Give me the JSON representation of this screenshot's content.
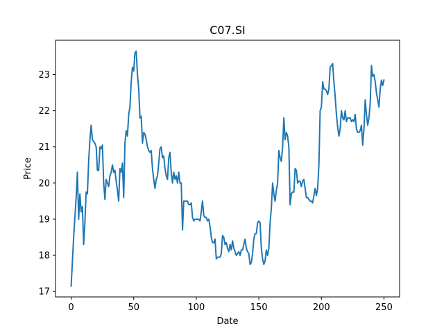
{
  "chart_data": {
    "type": "line",
    "title": "C07.SI",
    "xlabel": "Date",
    "ylabel": "Price",
    "xlim": [
      -12.5,
      262.5
    ],
    "ylim": [
      16.85,
      23.95
    ],
    "xticks": [
      0,
      50,
      100,
      150,
      200,
      250
    ],
    "yticks": [
      17,
      18,
      19,
      20,
      21,
      22,
      23
    ],
    "grid": false,
    "legend": "none",
    "series": [
      {
        "color": "#1f77b4",
        "keypoints": [
          [
            0,
            17.15
          ],
          [
            2,
            18.5
          ],
          [
            4,
            19.6
          ],
          [
            5,
            20.3
          ],
          [
            6,
            19.0
          ],
          [
            7,
            19.7
          ],
          [
            8,
            19.2
          ],
          [
            9,
            19.35
          ],
          [
            10,
            18.3
          ],
          [
            11,
            18.9
          ],
          [
            12,
            19.75
          ],
          [
            13,
            19.7
          ],
          [
            14,
            20.6
          ],
          [
            15,
            21.2
          ],
          [
            16,
            21.6
          ],
          [
            17,
            21.2
          ],
          [
            18,
            21.15
          ],
          [
            19,
            21.1
          ],
          [
            20,
            21.0
          ],
          [
            21,
            20.35
          ],
          [
            22,
            20.35
          ],
          [
            23,
            21.0
          ],
          [
            24,
            20.95
          ],
          [
            25,
            21.05
          ],
          [
            26,
            20.0
          ],
          [
            27,
            19.55
          ],
          [
            28,
            20.1
          ],
          [
            29,
            20.0
          ],
          [
            30,
            19.9
          ],
          [
            31,
            20.2
          ],
          [
            32,
            20.3
          ],
          [
            33,
            20.5
          ],
          [
            34,
            20.3
          ],
          [
            35,
            20.35
          ],
          [
            36,
            20.05
          ],
          [
            37,
            19.8
          ],
          [
            38,
            19.5
          ],
          [
            39,
            20.4
          ],
          [
            40,
            20.3
          ],
          [
            41,
            20.55
          ],
          [
            42,
            19.6
          ],
          [
            43,
            21.1
          ],
          [
            44,
            21.45
          ],
          [
            45,
            21.3
          ],
          [
            46,
            21.9
          ],
          [
            47,
            22.1
          ],
          [
            48,
            22.8
          ],
          [
            49,
            23.2
          ],
          [
            50,
            23.1
          ],
          [
            51,
            23.6
          ],
          [
            52,
            23.65
          ],
          [
            53,
            23.0
          ],
          [
            54,
            22.6
          ],
          [
            55,
            21.8
          ],
          [
            56,
            21.85
          ],
          [
            57,
            21.1
          ],
          [
            58,
            21.4
          ],
          [
            59,
            21.35
          ],
          [
            60,
            21.2
          ],
          [
            61,
            21.0
          ],
          [
            62,
            20.9
          ],
          [
            63,
            20.85
          ],
          [
            64,
            20.9
          ],
          [
            65,
            20.4
          ],
          [
            66,
            20.1
          ],
          [
            67,
            19.85
          ],
          [
            68,
            20.1
          ],
          [
            69,
            20.2
          ],
          [
            70,
            20.55
          ],
          [
            71,
            20.95
          ],
          [
            72,
            21.0
          ],
          [
            73,
            20.7
          ],
          [
            74,
            20.75
          ],
          [
            75,
            20.4
          ],
          [
            76,
            20.2
          ],
          [
            77,
            20.1
          ],
          [
            78,
            20.7
          ],
          [
            79,
            20.85
          ],
          [
            80,
            20.3
          ],
          [
            81,
            20.0
          ],
          [
            82,
            20.3
          ],
          [
            83,
            20.1
          ],
          [
            84,
            20.2
          ],
          [
            85,
            20.0
          ],
          [
            86,
            20.3
          ],
          [
            87,
            20.0
          ],
          [
            88,
            20.0
          ],
          [
            89,
            18.7
          ],
          [
            90,
            19.5
          ],
          [
            91,
            19.5
          ],
          [
            92,
            19.5
          ],
          [
            93,
            19.5
          ],
          [
            94,
            19.4
          ],
          [
            95,
            19.4
          ],
          [
            96,
            19.45
          ],
          [
            97,
            19.05
          ],
          [
            98,
            18.95
          ],
          [
            99,
            19.0
          ],
          [
            100,
            19.0
          ],
          [
            101,
            19.0
          ],
          [
            102,
            19.0
          ],
          [
            103,
            18.95
          ],
          [
            104,
            19.2
          ],
          [
            105,
            19.5
          ],
          [
            106,
            19.1
          ],
          [
            107,
            19.05
          ],
          [
            108,
            19.05
          ],
          [
            109,
            18.95
          ],
          [
            110,
            19.0
          ],
          [
            111,
            18.8
          ],
          [
            112,
            18.5
          ],
          [
            113,
            18.35
          ],
          [
            114,
            18.35
          ],
          [
            115,
            18.45
          ],
          [
            116,
            17.9
          ],
          [
            117,
            17.95
          ],
          [
            118,
            17.95
          ],
          [
            119,
            17.95
          ],
          [
            120,
            18.05
          ],
          [
            121,
            18.55
          ],
          [
            122,
            18.5
          ],
          [
            123,
            18.3
          ],
          [
            124,
            18.35
          ],
          [
            125,
            18.2
          ],
          [
            126,
            18.1
          ],
          [
            127,
            18.3
          ],
          [
            128,
            18.15
          ],
          [
            129,
            18.4
          ],
          [
            130,
            18.2
          ],
          [
            131,
            18.1
          ],
          [
            132,
            18.0
          ],
          [
            133,
            18.05
          ],
          [
            134,
            18.1
          ],
          [
            135,
            18.0
          ],
          [
            136,
            18.15
          ],
          [
            137,
            18.15
          ],
          [
            138,
            18.3
          ],
          [
            139,
            18.45
          ],
          [
            140,
            18.2
          ],
          [
            141,
            18.1
          ],
          [
            142,
            18.05
          ],
          [
            143,
            17.75
          ],
          [
            144,
            17.8
          ],
          [
            145,
            18.05
          ],
          [
            146,
            18.45
          ],
          [
            147,
            18.6
          ],
          [
            148,
            18.6
          ],
          [
            149,
            18.9
          ],
          [
            150,
            18.95
          ],
          [
            151,
            18.9
          ],
          [
            152,
            18.2
          ],
          [
            153,
            17.9
          ],
          [
            154,
            17.75
          ],
          [
            155,
            17.85
          ],
          [
            156,
            18.15
          ],
          [
            157,
            18.0
          ],
          [
            158,
            18.2
          ],
          [
            159,
            18.9
          ],
          [
            160,
            19.3
          ],
          [
            161,
            20.0
          ],
          [
            162,
            19.7
          ],
          [
            163,
            19.5
          ],
          [
            164,
            19.8
          ],
          [
            165,
            20.0
          ],
          [
            166,
            20.9
          ],
          [
            167,
            20.7
          ],
          [
            168,
            20.6
          ],
          [
            169,
            21.0
          ],
          [
            170,
            21.8
          ],
          [
            171,
            21.2
          ],
          [
            172,
            21.4
          ],
          [
            173,
            21.3
          ],
          [
            174,
            21.0
          ],
          [
            175,
            19.4
          ],
          [
            176,
            19.7
          ],
          [
            177,
            19.75
          ],
          [
            178,
            19.75
          ],
          [
            179,
            20.4
          ],
          [
            180,
            20.35
          ],
          [
            181,
            20.0
          ],
          [
            182,
            20.05
          ],
          [
            183,
            20.05
          ],
          [
            184,
            19.9
          ],
          [
            185,
            20.05
          ],
          [
            186,
            20.1
          ],
          [
            187,
            19.85
          ],
          [
            188,
            19.6
          ],
          [
            189,
            19.6
          ],
          [
            190,
            19.55
          ],
          [
            191,
            19.5
          ],
          [
            192,
            19.5
          ],
          [
            193,
            19.45
          ],
          [
            194,
            19.65
          ],
          [
            195,
            19.85
          ],
          [
            196,
            19.65
          ],
          [
            197,
            19.85
          ],
          [
            198,
            20.5
          ],
          [
            199,
            22.0
          ],
          [
            200,
            22.1
          ],
          [
            201,
            22.8
          ],
          [
            202,
            22.6
          ],
          [
            203,
            22.6
          ],
          [
            204,
            22.55
          ],
          [
            205,
            22.45
          ],
          [
            206,
            22.6
          ],
          [
            207,
            23.2
          ],
          [
            208,
            23.25
          ],
          [
            209,
            23.3
          ],
          [
            210,
            22.8
          ],
          [
            211,
            22.4
          ],
          [
            212,
            21.9
          ],
          [
            213,
            21.55
          ],
          [
            214,
            21.3
          ],
          [
            215,
            21.5
          ],
          [
            216,
            22.0
          ],
          [
            217,
            21.8
          ],
          [
            218,
            21.75
          ],
          [
            219,
            22.0
          ],
          [
            220,
            21.7
          ],
          [
            221,
            21.8
          ],
          [
            222,
            21.8
          ],
          [
            223,
            21.8
          ],
          [
            224,
            21.7
          ],
          [
            225,
            21.75
          ],
          [
            226,
            21.7
          ],
          [
            227,
            21.9
          ],
          [
            228,
            21.5
          ],
          [
            229,
            21.4
          ],
          [
            230,
            21.4
          ],
          [
            231,
            21.45
          ],
          [
            232,
            21.6
          ],
          [
            233,
            21.05
          ],
          [
            234,
            21.5
          ],
          [
            235,
            22.3
          ],
          [
            236,
            21.9
          ],
          [
            237,
            21.6
          ],
          [
            238,
            21.8
          ],
          [
            239,
            22.2
          ],
          [
            240,
            23.25
          ],
          [
            241,
            22.95
          ],
          [
            242,
            23.0
          ],
          [
            243,
            22.8
          ],
          [
            244,
            22.5
          ],
          [
            245,
            22.3
          ],
          [
            246,
            22.1
          ],
          [
            247,
            22.6
          ],
          [
            248,
            22.85
          ],
          [
            249,
            22.7
          ],
          [
            250,
            22.85
          ]
        ]
      }
    ]
  }
}
